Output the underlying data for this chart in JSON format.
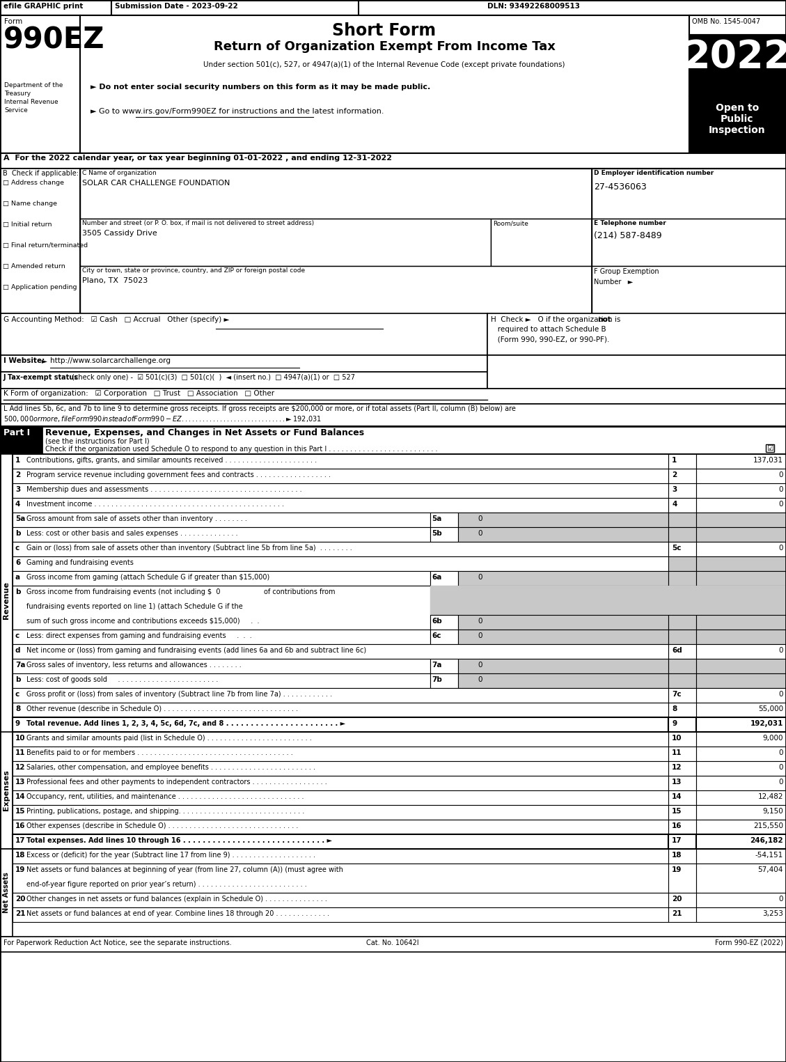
{
  "title_top": "Short Form",
  "title_main": "Return of Organization Exempt From Income Tax",
  "subtitle": "Under section 501(c), 527, or 4947(a)(1) of the Internal Revenue Code (except private foundations)",
  "efile_text": "efile GRAPHIC print",
  "submission_date": "Submission Date - 2023-09-22",
  "dln": "DLN: 93492268009513",
  "omb": "OMB No. 1545-0047",
  "year": "2022",
  "open_to": "Open to\nPublic\nInspection",
  "dept1": "Department of the",
  "dept2": "Treasury",
  "dept3": "Internal Revenue",
  "dept4": "Service",
  "bullet1": "► Do not enter social security numbers on this form as it may be made public.",
  "bullet2": "► Go to www.irs.gov/Form990EZ for instructions and the latest information.",
  "www_url": "www.irs.gov/Form990EZ",
  "line_A": "A  For the 2022 calendar year, or tax year beginning 01-01-2022 , and ending 12-31-2022",
  "checkboxes_B": [
    "Address change",
    "Name change",
    "Initial return",
    "Final return/terminated",
    "Amended return",
    "Application pending"
  ],
  "org_name": "SOLAR CAR CHALLENGE FOUNDATION",
  "street_label": "Number and street (or P. O. box, if mail is not delivered to street address)",
  "room_label": "Room/suite",
  "street_value": "3505 Cassidy Drive",
  "city_label": "City or town, state or province, country, and ZIP or foreign postal code",
  "city_value": "Plano, TX  75023",
  "ein": "27-4536063",
  "phone": "(214) 587-8489",
  "revenue_lines": [
    {
      "num": "1",
      "text": "Contributions, gifts, grants, and similar amounts received . . . . . . . . . . . . . . . . . . . . . .",
      "line": "1",
      "value": "137,031"
    },
    {
      "num": "2",
      "text": "Program service revenue including government fees and contracts . . . . . . . . . . . . . . . . . .",
      "line": "2",
      "value": "0"
    },
    {
      "num": "3",
      "text": "Membership dues and assessments . . . . . . . . . . . . . . . . . . . . . . . . . . . . . . . . . . . .",
      "line": "3",
      "value": "0"
    },
    {
      "num": "4",
      "text": "Investment income . . . . . . . . . . . . . . . . . . . . . . . . . . . . . . . . . . . . . . . . . . . . .",
      "line": "4",
      "value": "0"
    }
  ],
  "line_5a_text": "Gross amount from sale of assets other than inventory . . . . . . . .",
  "line_5b_text": "Less: cost or other basis and sales expenses . . . . . . . . . . . . . .",
  "line_5c_text": "Gain or (loss) from sale of assets other than inventory (Subtract line 5b from line 5a)  . . . . . . . .",
  "line_6a_text": "Gross income from gaming (attach Schedule G if greater than $15,000)",
  "line_6b_text1": "Gross income from fundraising events (not including $  0                    of contributions from",
  "line_6b_text2": "fundraising events reported on line 1) (attach Schedule G if the",
  "line_6b_text3": "sum of such gross income and contributions exceeds $15,000)     .  .",
  "line_6c_text": "Less: direct expenses from gaming and fundraising events     .  .  .",
  "line_6d_text": "Net income or (loss) from gaming and fundraising events (add lines 6a and 6b and subtract line 6c)",
  "line_7a_text": "Gross sales of inventory, less returns and allowances . . . . . . . .",
  "line_7b_text": "Less: cost of goods sold     . . . . . . . . . . . . . . . . . . . . . . . .",
  "line_7c_text": "Gross profit or (loss) from sales of inventory (Subtract line 7b from line 7a) . . . . . . . . . . . .",
  "line_8_text": "Other revenue (describe in Schedule O) . . . . . . . . . . . . . . . . . . . . . . . . . . . . . . . .",
  "line_8_value": "55,000",
  "line_9_text": "Total revenue. Add lines 1, 2, 3, 4, 5c, 6d, 7c, and 8 . . . . . . . . . . . . . . . . . . . . . . . ►",
  "line_9_value": "192,031",
  "expense_lines": [
    {
      "num": "10",
      "text": "Grants and similar amounts paid (list in Schedule O) . . . . . . . . . . . . . . . . . . . . . . . . .",
      "line": "10",
      "value": "9,000"
    },
    {
      "num": "11",
      "text": "Benefits paid to or for members . . . . . . . . . . . . . . . . . . . . . . . . . . . . . . . . . . . . .",
      "line": "11",
      "value": "0"
    },
    {
      "num": "12",
      "text": "Salaries, other compensation, and employee benefits . . . . . . . . . . . . . . . . . . . . . . . . .",
      "line": "12",
      "value": "0"
    },
    {
      "num": "13",
      "text": "Professional fees and other payments to independent contractors . . . . . . . . . . . . . . . . . .",
      "line": "13",
      "value": "0"
    },
    {
      "num": "14",
      "text": "Occupancy, rent, utilities, and maintenance . . . . . . . . . . . . . . . . . . . . . . . . . . . . . .",
      "line": "14",
      "value": "12,482"
    },
    {
      "num": "15",
      "text": "Printing, publications, postage, and shipping. . . . . . . . . . . . . . . . . . . . . . . . . . . . . .",
      "line": "15",
      "value": "9,150"
    },
    {
      "num": "16",
      "text": "Other expenses (describe in Schedule O) . . . . . . . . . . . . . . . . . . . . . . . . . . . . . . .",
      "line": "16",
      "value": "215,550"
    },
    {
      "num": "17",
      "text": "Total expenses. Add lines 10 through 16 . . . . . . . . . . . . . . . . . . . . . . . . . . . . . ►",
      "line": "17",
      "value": "246,182"
    }
  ],
  "net_assets_lines": [
    {
      "num": "18",
      "text": "Excess or (deficit) for the year (Subtract line 17 from line 9) . . . . . . . . . . . . . . . . . . . .",
      "line": "18",
      "value": "-54,151"
    },
    {
      "num": "19",
      "text1": "Net assets or fund balances at beginning of year (from line 27, column (A)) (must agree with",
      "text2": "end-of-year figure reported on prior year’s return) . . . . . . . . . . . . . . . . . . . . . . . . . .",
      "line": "19",
      "value": "57,404"
    },
    {
      "num": "20",
      "text": "Other changes in net assets or fund balances (explain in Schedule O) . . . . . . . . . . . . . . .",
      "line": "20",
      "value": "0"
    },
    {
      "num": "21",
      "text": "Net assets or fund balances at end of year. Combine lines 18 through 20 . . . . . . . . . . . . .",
      "line": "21",
      "value": "3,253"
    }
  ],
  "footer_left": "For Paperwork Reduction Act Notice, see the separate instructions.",
  "footer_cat": "Cat. No. 10642I",
  "footer_right": "Form 990-EZ (2022)"
}
